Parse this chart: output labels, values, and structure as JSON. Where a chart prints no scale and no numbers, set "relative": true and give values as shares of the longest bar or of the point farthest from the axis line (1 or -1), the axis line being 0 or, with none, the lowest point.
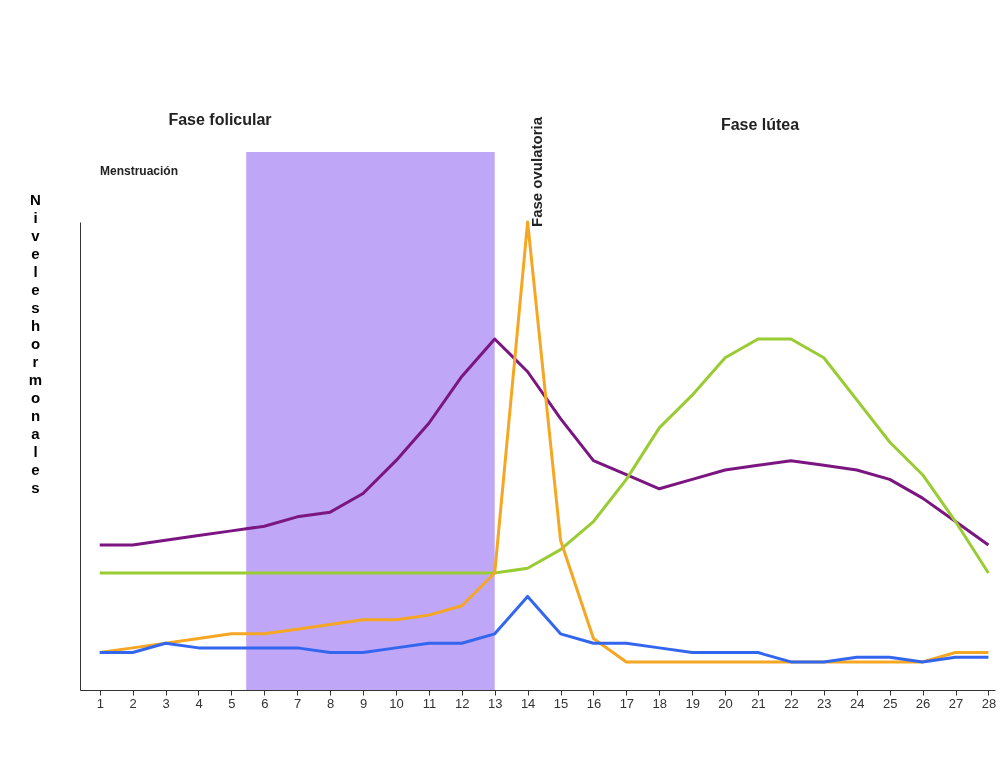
{
  "chart_data": {
    "type": "line",
    "relative": true,
    "ylabel": "Niveles hormonales",
    "annotations": [
      "Fase folicular",
      "Fase ovulatoria",
      "Fase lútea",
      "Menstruación"
    ],
    "x": [
      1,
      2,
      3,
      4,
      5,
      6,
      7,
      8,
      9,
      10,
      11,
      12,
      13,
      14,
      15,
      16,
      17,
      18,
      19,
      20,
      21,
      22,
      23,
      24,
      25,
      26,
      27,
      28
    ],
    "xlim": [
      0.4,
      28.2
    ],
    "xticks": [
      1,
      2,
      3,
      4,
      5,
      6,
      7,
      8,
      9,
      10,
      11,
      12,
      13,
      14,
      15,
      16,
      17,
      18,
      19,
      20,
      21,
      22,
      23,
      24,
      25,
      26,
      27,
      28
    ],
    "bands": [
      {
        "axis": "x",
        "from": 5.45,
        "to": 13,
        "color": "#bfa6f7"
      }
    ],
    "series": [
      {
        "color": "#7b1580",
        "values": [
          0.31,
          0.31,
          0.32,
          0.33,
          0.34,
          0.35,
          0.37,
          0.38,
          0.42,
          0.49,
          0.57,
          0.67,
          0.75,
          0.68,
          0.58,
          0.49,
          0.46,
          0.43,
          0.45,
          0.47,
          0.48,
          0.49,
          0.48,
          0.47,
          0.45,
          0.41,
          0.36,
          0.31
        ]
      },
      {
        "color": "#99cc33",
        "values": [
          0.25,
          0.25,
          0.25,
          0.25,
          0.25,
          0.25,
          0.25,
          0.25,
          0.25,
          0.25,
          0.25,
          0.25,
          0.25,
          0.26,
          0.3,
          0.36,
          0.45,
          0.56,
          0.63,
          0.71,
          0.75,
          0.75,
          0.71,
          0.62,
          0.53,
          0.46,
          0.36,
          0.25
        ]
      },
      {
        "color": "#f5a623",
        "values": [
          0.08,
          0.09,
          0.1,
          0.11,
          0.12,
          0.12,
          0.13,
          0.14,
          0.15,
          0.15,
          0.16,
          0.18,
          0.25,
          1,
          0.32,
          0.11,
          0.06,
          0.06,
          0.06,
          0.06,
          0.06,
          0.06,
          0.06,
          0.06,
          0.06,
          0.06,
          0.08,
          0.08
        ]
      },
      {
        "color": "#3366ee",
        "values": [
          0.08,
          0.08,
          0.1,
          0.09,
          0.09,
          0.09,
          0.09,
          0.08,
          0.08,
          0.09,
          0.1,
          0.1,
          0.12,
          0.2,
          0.12,
          0.1,
          0.1,
          0.09,
          0.08,
          0.08,
          0.08,
          0.06,
          0.06,
          0.07,
          0.07,
          0.06,
          0.07,
          0.07
        ]
      }
    ]
  }
}
